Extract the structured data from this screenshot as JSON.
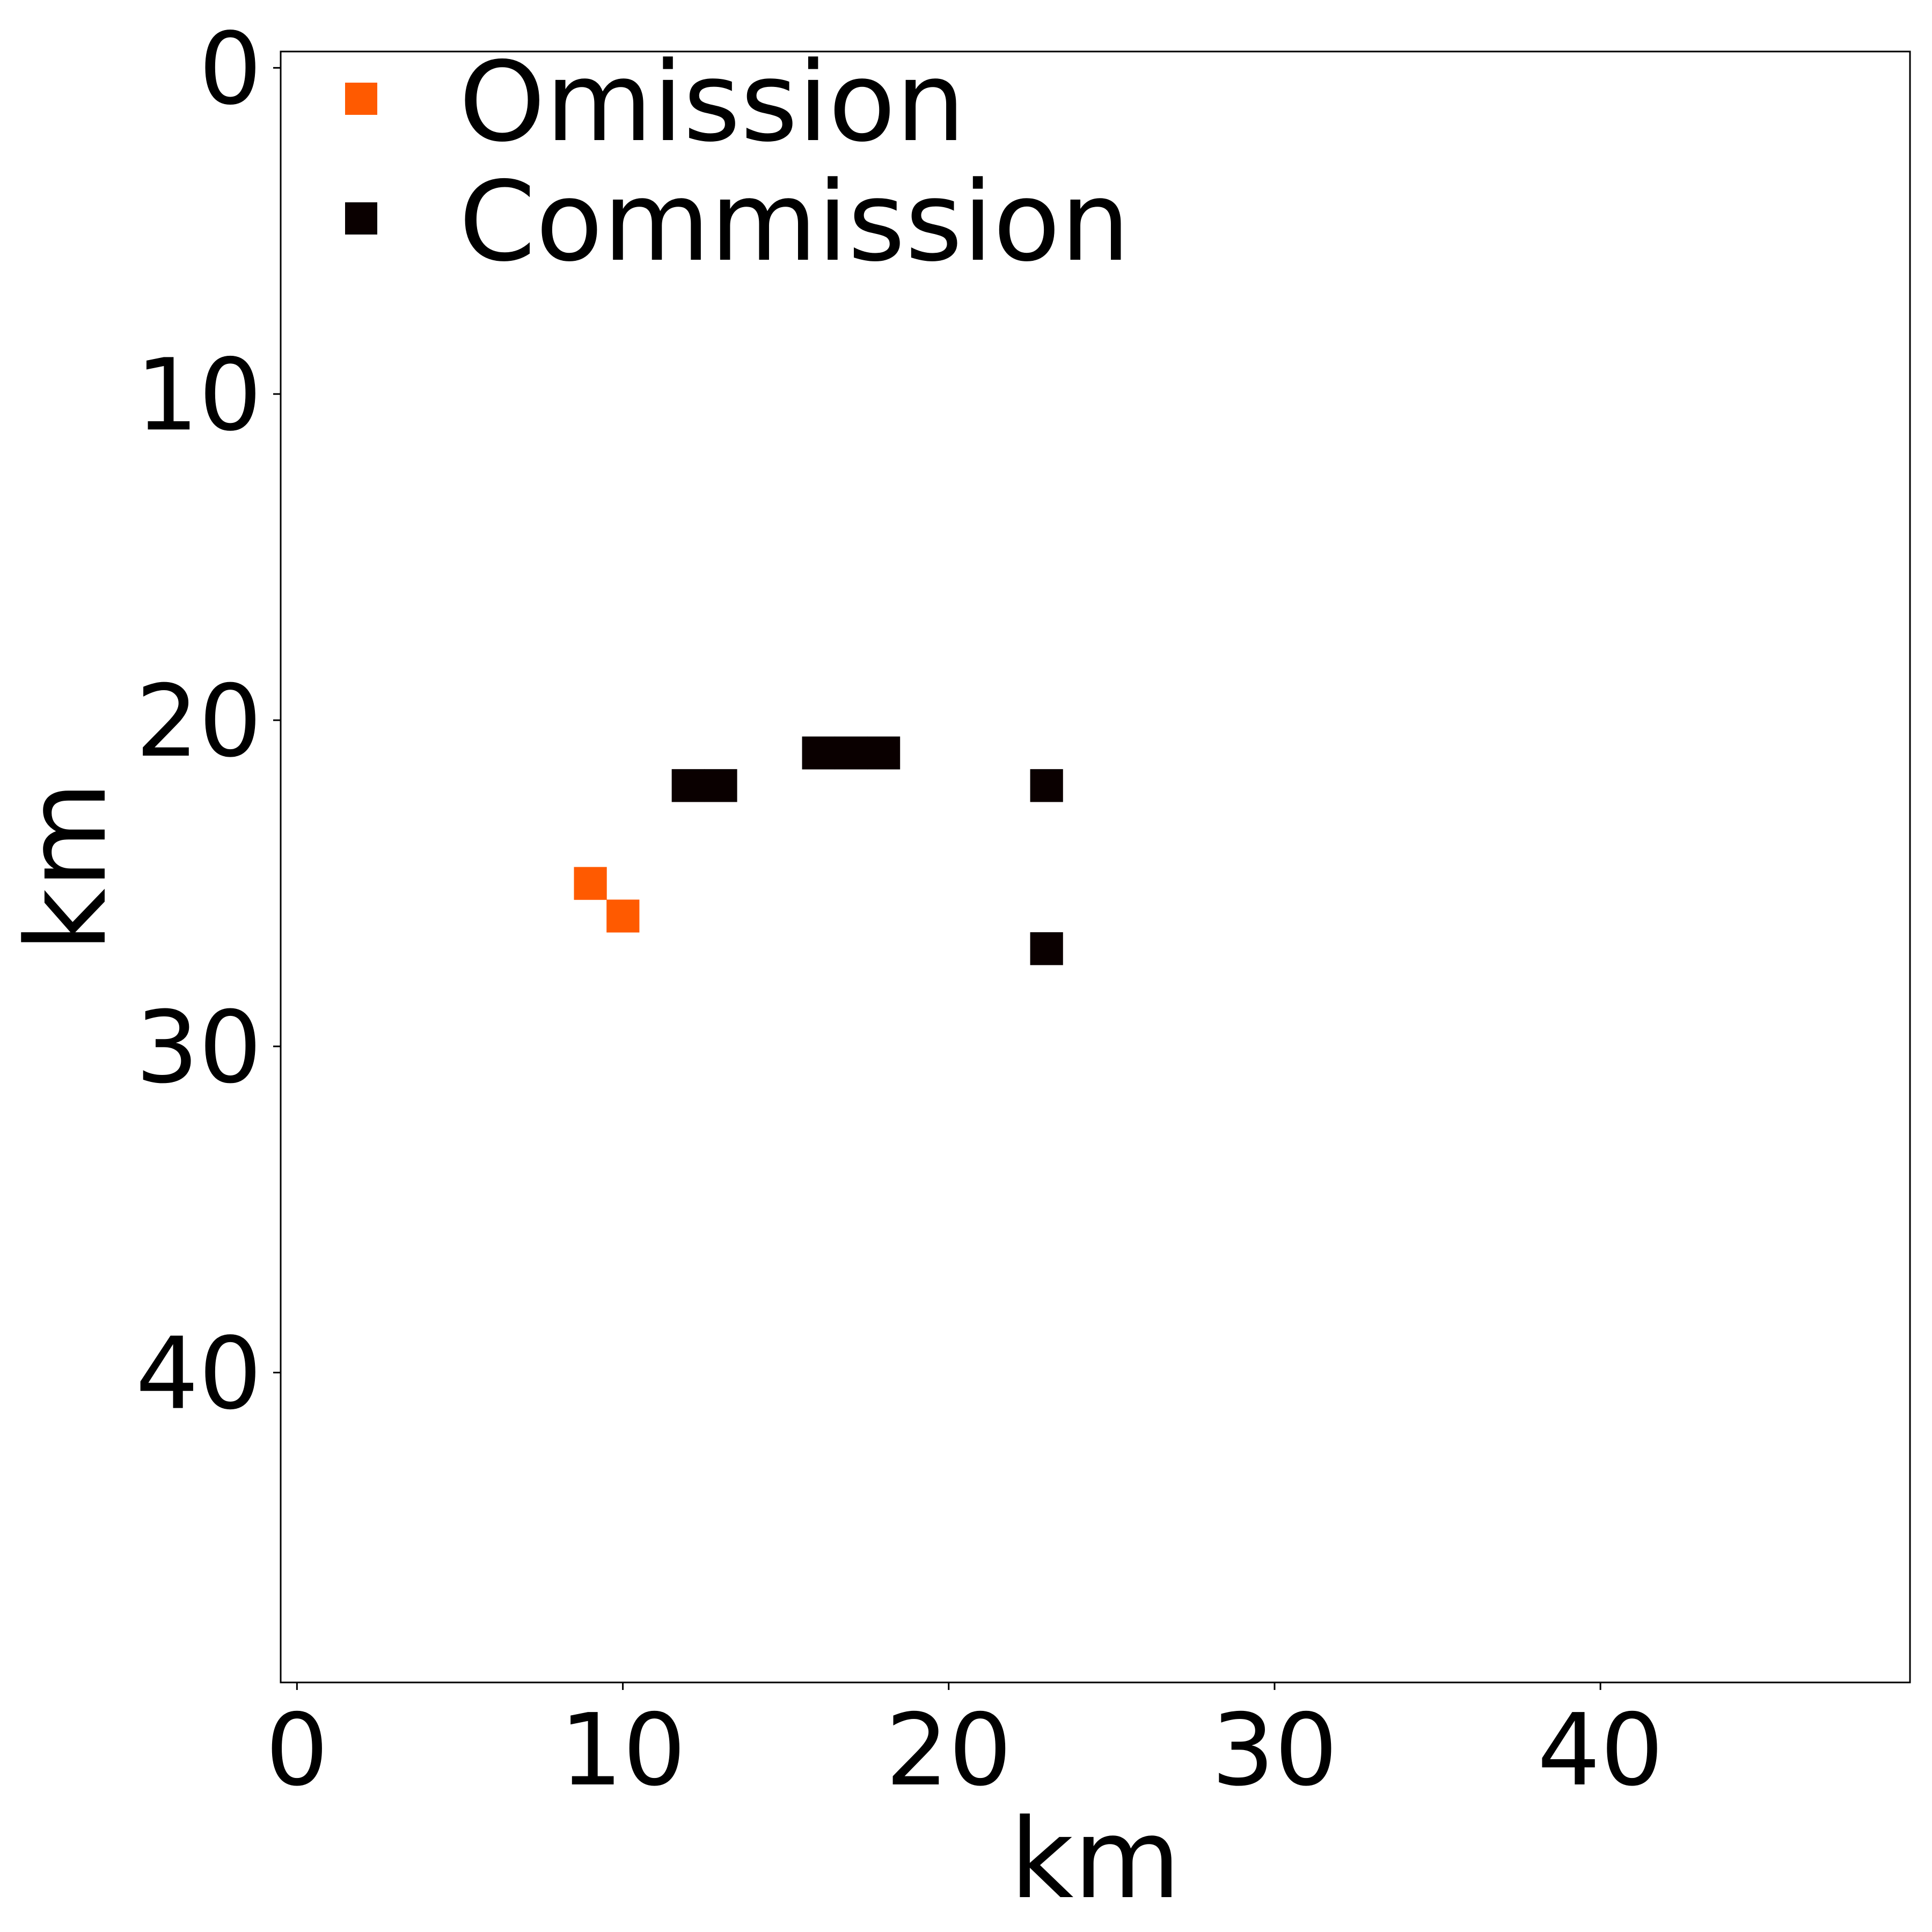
{
  "chart_data": {
    "type": "heatmap",
    "title": "",
    "xlabel": "km",
    "ylabel": "km",
    "xlim": [
      -0.5,
      49.5
    ],
    "ylim": [
      49.5,
      -0.5
    ],
    "y_axis_inverted": true,
    "cell_size_km": 1,
    "xticks": [
      0,
      10,
      20,
      30,
      40
    ],
    "yticks": [
      0,
      10,
      20,
      30,
      40
    ],
    "xtick_labels": [
      "0",
      "10",
      "20",
      "30",
      "40"
    ],
    "ytick_labels": [
      "0",
      "10",
      "20",
      "30",
      "40"
    ],
    "grid": false,
    "legend": {
      "placement": "top-left",
      "entries": [
        {
          "label": "Omission",
          "color": "#ff5a00",
          "marker": "square"
        },
        {
          "label": "Commission",
          "color": "#0a0000",
          "marker": "square"
        }
      ]
    },
    "series": [
      {
        "name": "Omission",
        "color": "#ff5a00",
        "cells": [
          {
            "x": 9,
            "y": 25
          },
          {
            "x": 10,
            "y": 26
          }
        ]
      },
      {
        "name": "Commission",
        "color": "#0a0000",
        "cells": [
          {
            "x": 12,
            "y": 22
          },
          {
            "x": 13,
            "y": 22
          },
          {
            "x": 16,
            "y": 21
          },
          {
            "x": 17,
            "y": 21
          },
          {
            "x": 18,
            "y": 21
          },
          {
            "x": 23,
            "y": 22
          },
          {
            "x": 23,
            "y": 27
          }
        ]
      }
    ]
  }
}
